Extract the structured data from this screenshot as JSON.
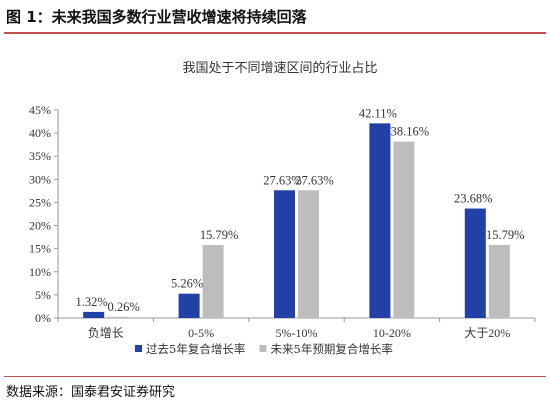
{
  "figure_title": "图 1：未来我国多数行业营收增速将持续回落",
  "source": "数据来源：国泰君安证券研究",
  "colors": {
    "rule": "#c0504d"
  },
  "chart_data": {
    "type": "bar",
    "title": "我国处于不同增速区间的行业占比",
    "categories": [
      "负增长",
      "0-5%",
      "5%-10%",
      "10-20%",
      "大于20%"
    ],
    "series": [
      {
        "name": "过去5年复合增长率",
        "color": "#2241a6",
        "values": [
          1.32,
          5.26,
          27.63,
          42.11,
          23.68
        ],
        "labels": [
          "1.32%",
          "5.26%",
          "27.63%",
          "42.11%",
          "23.68%"
        ]
      },
      {
        "name": "未来5年预期复合增长率",
        "color": "#bdbdbd",
        "values": [
          0.26,
          15.79,
          27.63,
          38.16,
          15.79
        ],
        "labels": [
          "0.26%",
          "15.79%",
          "27.63%",
          "38.16%",
          "15.79%"
        ]
      }
    ],
    "ylim": [
      0,
      45
    ],
    "yticks": [
      "0%",
      "5%",
      "10%",
      "15%",
      "20%",
      "25%",
      "30%",
      "35%",
      "40%",
      "45%"
    ],
    "ytick_values": [
      0,
      5,
      10,
      15,
      20,
      25,
      30,
      35,
      40,
      45
    ],
    "grid": false,
    "legend": "bottom"
  }
}
